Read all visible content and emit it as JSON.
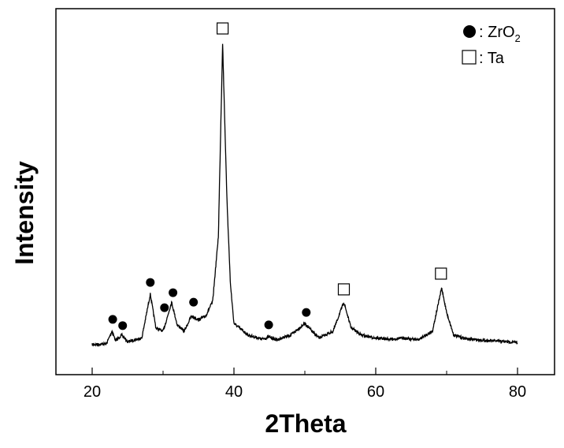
{
  "chart_data": {
    "type": "line",
    "title": "",
    "xlabel": "2Theta",
    "ylabel": "Intensity",
    "xlim": [
      15,
      85
    ],
    "ylim": [
      0,
      100
    ],
    "xticks": [
      20,
      40,
      60,
      80
    ],
    "x_minor_ticks": [
      30,
      50,
      70
    ],
    "y_ticks_shown": false,
    "grid": false,
    "legend_position": "top-right",
    "legend": [
      {
        "marker": "filled-circle",
        "label": ": ZrO",
        "subscript": "2"
      },
      {
        "marker": "open-square",
        "label": ": Ta"
      }
    ],
    "series": [
      {
        "color": "#000000",
        "x": [
          20,
          22,
          22.8,
          23.3,
          24.2,
          25,
          27,
          28.2,
          29,
          30,
          30.5,
          31.2,
          32,
          33,
          34,
          35,
          36,
          37,
          37.8,
          38.4,
          39,
          39.5,
          40,
          42,
          44,
          45,
          46,
          48,
          50,
          51,
          52,
          54,
          55.5,
          56.5,
          58,
          60,
          62,
          64,
          66,
          68,
          69.3,
          70,
          71,
          73,
          76,
          80
        ],
        "y": [
          8.2,
          8.4,
          11.9,
          9.3,
          10.8,
          9,
          10,
          22,
          12.7,
          11.9,
          15,
          19.8,
          13.6,
          11.9,
          16,
          15,
          16,
          20,
          37.7,
          90.5,
          48.5,
          24.8,
          14,
          10.8,
          9.7,
          10.3,
          9.5,
          10.8,
          14,
          11.9,
          10,
          11.9,
          19.8,
          12.9,
          10.8,
          10,
          9.7,
          10,
          9.5,
          11.9,
          23.7,
          17,
          10.8,
          9.7,
          9.3,
          8.8
        ]
      }
    ],
    "annotations": {
      "ZrO2": {
        "marker": "filled-circle",
        "x": [
          22.9,
          24.3,
          28.2,
          30.2,
          31.4,
          34.3,
          44.9,
          50.2
        ],
        "y": [
          15.1,
          13.4,
          25.2,
          18.3,
          22.4,
          19.8,
          13.6,
          17
        ]
      },
      "Ta": {
        "marker": "open-square",
        "x": [
          38.4,
          55.5,
          69.2
        ],
        "y": [
          94.6,
          23.3,
          27.6
        ]
      }
    }
  }
}
